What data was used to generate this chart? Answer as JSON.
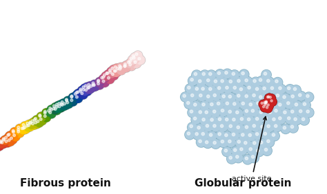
{
  "background_color": "#ffffff",
  "fibrous_label": "Fibrous protein",
  "globular_label": "Globular protein",
  "active_site_label": "active site",
  "label_fontsize": 11,
  "annotation_fontsize": 8,
  "globular_base_color": "#aecde0",
  "globular_edge_color": "#7aaabf",
  "active_site_color": "#cc2222",
  "active_site_dark": "#881111",
  "fibrous_color_sequence": [
    "#cc3333",
    "#dd4422",
    "#ee6611",
    "#ff8800",
    "#ffaa00",
    "#ffcc00",
    "#ddcc00",
    "#bbbb00",
    "#88aa00",
    "#559900",
    "#228833",
    "#116644",
    "#007755",
    "#006666",
    "#005577",
    "#004499",
    "#2233aa",
    "#4444bb",
    "#6644aa",
    "#884499",
    "#aa4488",
    "#cc5577",
    "#dd7788",
    "#ee9999",
    "#eeb0b0",
    "#f0c0c0",
    "#f5d0d0",
    "#f8e0e0"
  ]
}
